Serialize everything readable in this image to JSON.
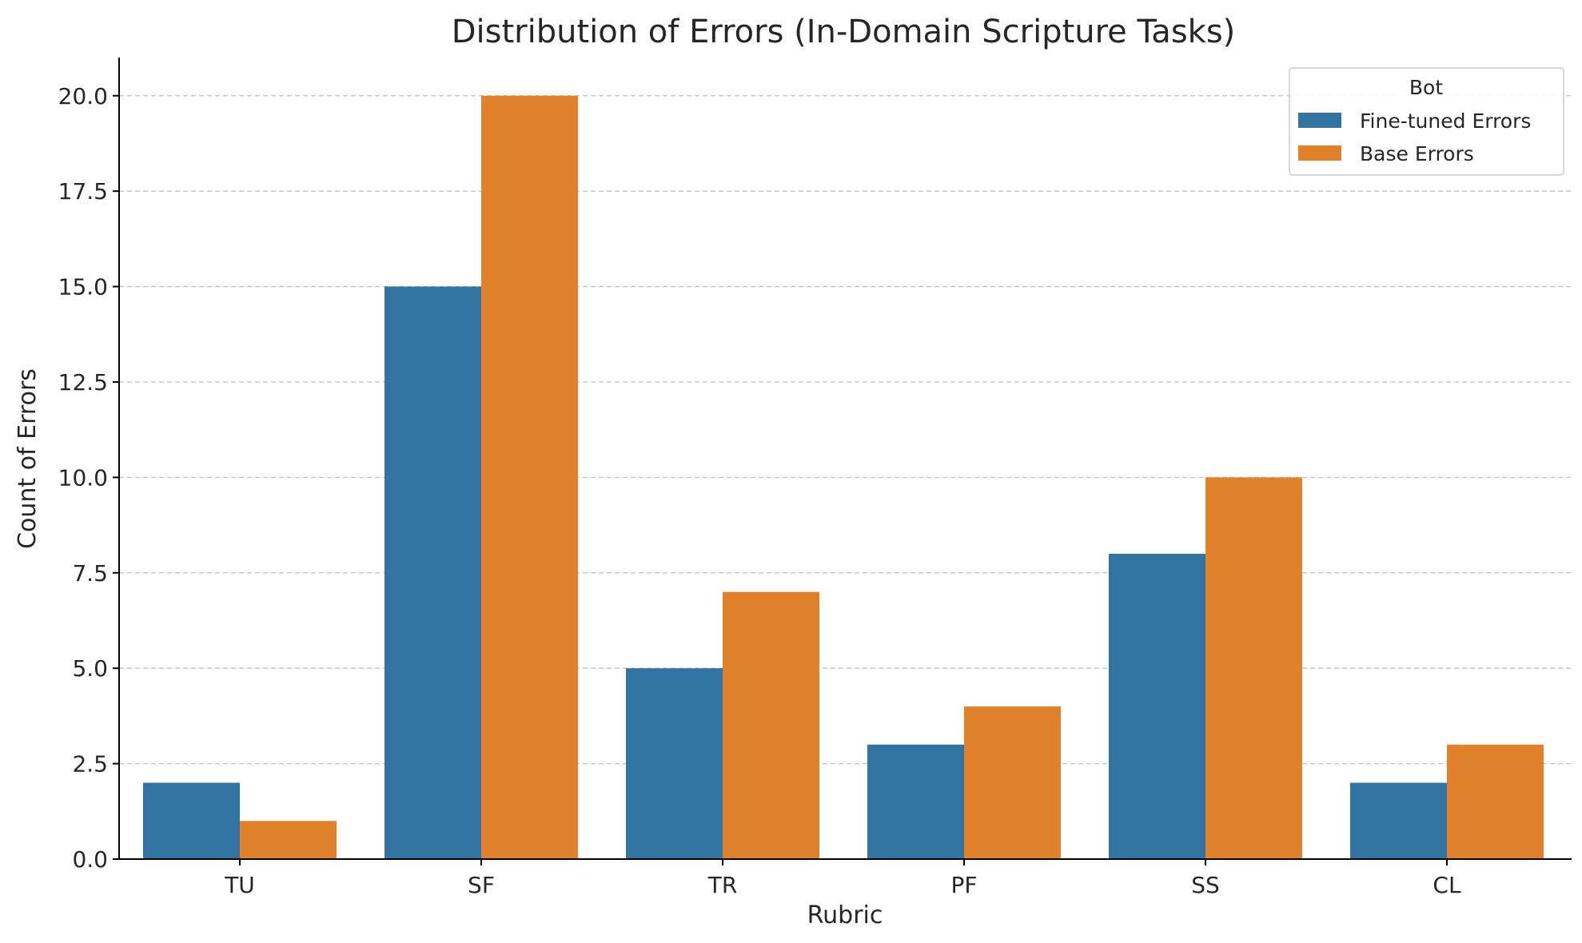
{
  "chart_data": {
    "type": "bar",
    "title": "Distribution of Errors (In-Domain Scripture Tasks)",
    "xlabel": "Rubric",
    "ylabel": "Count of Errors",
    "categories": [
      "TU",
      "SF",
      "TR",
      "PF",
      "SS",
      "CL"
    ],
    "series": [
      {
        "name": "Fine-tuned Errors",
        "color": "#3274a1",
        "values": [
          2,
          15,
          5,
          3,
          8,
          2
        ]
      },
      {
        "name": "Base Errors",
        "color": "#e1812c",
        "values": [
          1,
          20,
          7,
          4,
          10,
          3
        ]
      }
    ],
    "ylim": [
      0,
      21
    ],
    "yticks": [
      "0.0",
      "2.5",
      "5.0",
      "7.5",
      "10.0",
      "12.5",
      "15.0",
      "17.5",
      "20.0"
    ],
    "grid": "y-dashed",
    "legend": {
      "title": "Bot",
      "placement": "top-right"
    }
  }
}
